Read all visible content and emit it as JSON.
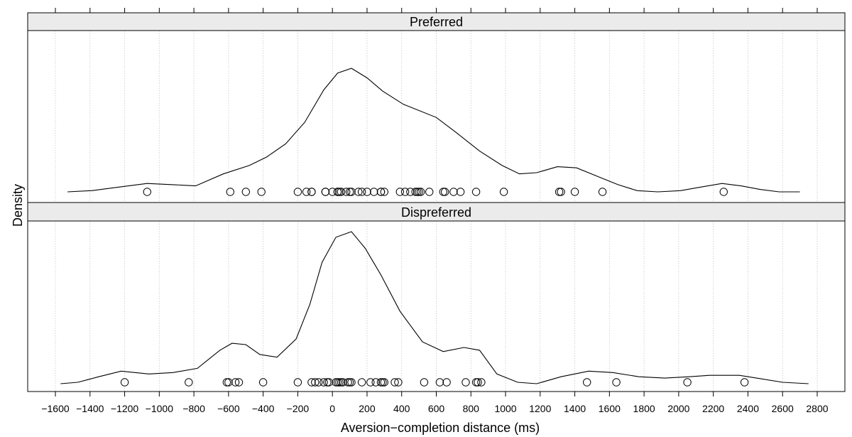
{
  "chart_data": {
    "type": "density",
    "xlabel": "Aversion−completion distance (ms)",
    "ylabel": "Density",
    "xlim": [
      -1760,
      2960
    ],
    "grid": true,
    "x_ticks": [
      -1600,
      -1400,
      -1200,
      -1000,
      -800,
      -600,
      -400,
      -200,
      0,
      200,
      400,
      600,
      800,
      1000,
      1200,
      1400,
      1600,
      1800,
      2000,
      2200,
      2400,
      2600,
      2800
    ],
    "x_tick_labels": [
      "−1600",
      "−1400",
      "−1200",
      "−1000",
      "−800",
      "−600",
      "−400",
      "−200",
      "0",
      "200",
      "400",
      "600",
      "800",
      "1000",
      "1200",
      "1400",
      "1600",
      "1800",
      "2000",
      "2200",
      "2400",
      "2600",
      "2800"
    ],
    "panels": [
      {
        "name": "Preferred",
        "density_curve": [
          [
            -1530,
            0.0
          ],
          [
            -1390,
            0.01
          ],
          [
            -1230,
            0.04
          ],
          [
            -1070,
            0.07
          ],
          [
            -920,
            0.06
          ],
          [
            -790,
            0.05
          ],
          [
            -630,
            0.15
          ],
          [
            -480,
            0.22
          ],
          [
            -380,
            0.29
          ],
          [
            -270,
            0.4
          ],
          [
            -160,
            0.58
          ],
          [
            -50,
            0.85
          ],
          [
            30,
            0.99
          ],
          [
            110,
            1.03
          ],
          [
            200,
            0.95
          ],
          [
            290,
            0.84
          ],
          [
            410,
            0.73
          ],
          [
            600,
            0.62
          ],
          [
            710,
            0.5
          ],
          [
            850,
            0.34
          ],
          [
            980,
            0.22
          ],
          [
            1080,
            0.15
          ],
          [
            1180,
            0.16
          ],
          [
            1300,
            0.21
          ],
          [
            1410,
            0.2
          ],
          [
            1530,
            0.13
          ],
          [
            1650,
            0.06
          ],
          [
            1760,
            0.01
          ],
          [
            1880,
            0.0
          ],
          [
            2010,
            0.01
          ],
          [
            2130,
            0.04
          ],
          [
            2250,
            0.07
          ],
          [
            2360,
            0.05
          ],
          [
            2470,
            0.02
          ],
          [
            2580,
            0.0
          ],
          [
            2700,
            0.0
          ]
        ],
        "points": [
          -1070,
          -590,
          -500,
          -410,
          -200,
          -150,
          -120,
          -120,
          -40,
          -40,
          0,
          30,
          30,
          40,
          50,
          80,
          100,
          110,
          150,
          170,
          200,
          240,
          280,
          280,
          300,
          390,
          420,
          450,
          480,
          490,
          500,
          510,
          560,
          640,
          650,
          700,
          740,
          830,
          990,
          1310,
          1320,
          1400,
          1560,
          2260
        ]
      },
      {
        "name": "Dispreferred",
        "density_curve": [
          [
            -1570,
            0.0
          ],
          [
            -1470,
            0.01
          ],
          [
            -1350,
            0.05
          ],
          [
            -1220,
            0.09
          ],
          [
            -1060,
            0.07
          ],
          [
            -920,
            0.08
          ],
          [
            -780,
            0.11
          ],
          [
            -650,
            0.24
          ],
          [
            -580,
            0.29
          ],
          [
            -500,
            0.28
          ],
          [
            -420,
            0.21
          ],
          [
            -320,
            0.19
          ],
          [
            -210,
            0.32
          ],
          [
            -130,
            0.57
          ],
          [
            -60,
            0.87
          ],
          [
            20,
            1.05
          ],
          [
            110,
            1.09
          ],
          [
            190,
            0.97
          ],
          [
            280,
            0.78
          ],
          [
            390,
            0.52
          ],
          [
            520,
            0.3
          ],
          [
            640,
            0.23
          ],
          [
            760,
            0.26
          ],
          [
            850,
            0.24
          ],
          [
            950,
            0.07
          ],
          [
            1070,
            0.01
          ],
          [
            1180,
            0.0
          ],
          [
            1320,
            0.05
          ],
          [
            1480,
            0.09
          ],
          [
            1620,
            0.08
          ],
          [
            1770,
            0.05
          ],
          [
            1920,
            0.04
          ],
          [
            2060,
            0.05
          ],
          [
            2180,
            0.06
          ],
          [
            2350,
            0.06
          ],
          [
            2450,
            0.04
          ],
          [
            2600,
            0.01
          ],
          [
            2750,
            0.0
          ]
        ],
        "points": [
          -1200,
          -830,
          -610,
          -600,
          -560,
          -540,
          -400,
          -200,
          -120,
          -100,
          -80,
          -50,
          -30,
          -20,
          20,
          30,
          40,
          50,
          60,
          90,
          100,
          110,
          170,
          220,
          250,
          280,
          290,
          300,
          360,
          380,
          530,
          620,
          660,
          770,
          830,
          840,
          860,
          1470,
          1640,
          2050,
          2380
        ]
      }
    ]
  }
}
